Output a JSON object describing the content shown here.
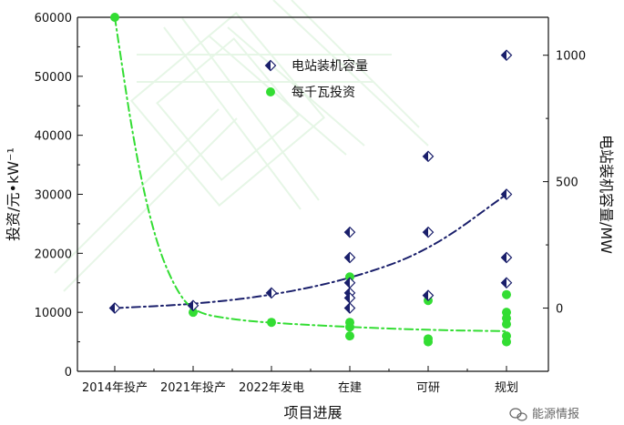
{
  "chart_data": {
    "type": "scatter",
    "xlabel": "项目进展",
    "ylabel_left": "投资/元•kW⁻¹",
    "ylabel_right": "电站装机容量/MW",
    "categories": [
      "2014年投产",
      "2021年投产",
      "2022年发电",
      "在建",
      "可研",
      "规划"
    ],
    "y_left": {
      "ticks": [
        0,
        10000,
        20000,
        30000,
        40000,
        50000,
        60000
      ],
      "lim": [
        0,
        60000
      ]
    },
    "y_right": {
      "ticks": [
        0,
        500,
        1000
      ],
      "lim": [
        -250,
        1150
      ]
    },
    "series": [
      {
        "name": "电站装机容量",
        "marker": "half-diamond",
        "axis": "right",
        "color": "#1a1f6b",
        "points": [
          {
            "x": "2014年投产",
            "y": 0
          },
          {
            "x": "2021年投产",
            "y": 10
          },
          {
            "x": "2022年发电",
            "y": 60
          },
          {
            "x": "在建",
            "y": 300
          },
          {
            "x": "在建",
            "y": 200
          },
          {
            "x": "在建",
            "y": 100
          },
          {
            "x": "在建",
            "y": 60
          },
          {
            "x": "在建",
            "y": 40
          },
          {
            "x": "在建",
            "y": 0
          },
          {
            "x": "可研",
            "y": 600
          },
          {
            "x": "可研",
            "y": 300
          },
          {
            "x": "可研",
            "y": 50
          },
          {
            "x": "规划",
            "y": 1000
          },
          {
            "x": "规划",
            "y": 450
          },
          {
            "x": "规划",
            "y": 200
          },
          {
            "x": "规划",
            "y": 100
          }
        ],
        "trend": [
          [
            0,
            0
          ],
          [
            1,
            15
          ],
          [
            2,
            50
          ],
          [
            3,
            115
          ],
          [
            4,
            225
          ],
          [
            5,
            450
          ]
        ]
      },
      {
        "name": "每千瓦投资",
        "marker": "circle",
        "axis": "left",
        "color": "#33dd33",
        "points": [
          {
            "x": "2014年投产",
            "y": 60000
          },
          {
            "x": "2021年投产",
            "y": 10000
          },
          {
            "x": "2022年发电",
            "y": 8300
          },
          {
            "x": "在建",
            "y": 16000
          },
          {
            "x": "在建",
            "y": 8300
          },
          {
            "x": "在建",
            "y": 7500
          },
          {
            "x": "在建",
            "y": 6000
          },
          {
            "x": "可研",
            "y": 12000
          },
          {
            "x": "可研",
            "y": 5500
          },
          {
            "x": "可研",
            "y": 5000
          },
          {
            "x": "规划",
            "y": 13000
          },
          {
            "x": "规划",
            "y": 10000
          },
          {
            "x": "规划",
            "y": 9000
          },
          {
            "x": "规划",
            "y": 8000
          },
          {
            "x": "规划",
            "y": 6000
          },
          {
            "x": "规划",
            "y": 5000
          }
        ],
        "trend": [
          [
            0,
            60000
          ],
          [
            0.25,
            38000
          ],
          [
            0.5,
            23000
          ],
          [
            0.75,
            14500
          ],
          [
            1,
            10000
          ],
          [
            1.5,
            8800
          ],
          [
            2,
            8200
          ],
          [
            3,
            7500
          ],
          [
            4,
            7000
          ],
          [
            5,
            6800
          ]
        ]
      }
    ],
    "legend_position": "top-center",
    "grid": false
  },
  "watermark": {
    "text": "能源情报"
  },
  "colors": {
    "axis": "#111111",
    "background": "#ffffff"
  }
}
